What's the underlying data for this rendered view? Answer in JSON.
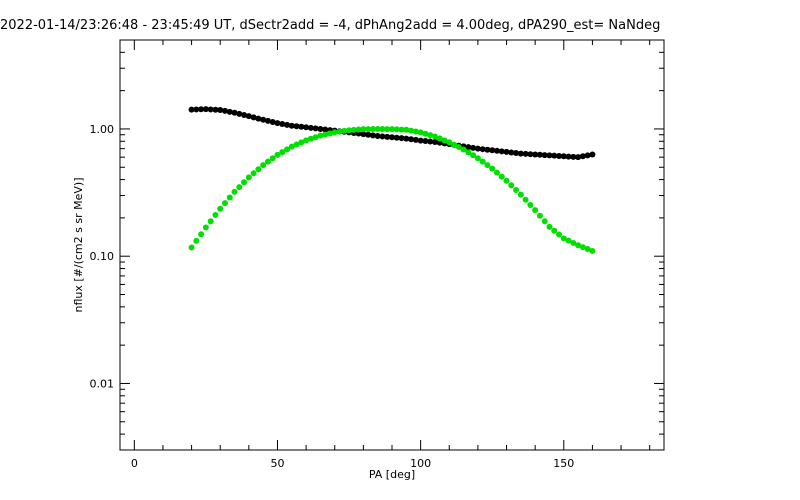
{
  "chart_data": {
    "type": "scatter",
    "title": "2022-01-14/23:26:48 - 23:45:49 UT, dSectr2add = -4, dPhAng2add = 4.00deg, dPA290_est=   NaNdeg",
    "xlabel": "PA [deg]",
    "ylabel": "nflux [#/(cm2 s sr MeV)]",
    "xlim": [
      -5,
      185
    ],
    "ylim": [
      0.003,
      5.0
    ],
    "yscale": "log",
    "xticks": [
      0,
      50,
      100,
      150
    ],
    "xtick_labels": [
      "0",
      "50",
      "100",
      "150"
    ],
    "yticks": [
      0.01,
      0.1,
      1.0
    ],
    "ytick_labels": [
      "0.01",
      "0.10",
      "1.00"
    ],
    "grid": false,
    "series": [
      {
        "color": "#000000",
        "x": [
          20,
          25,
          30,
          35,
          40,
          45,
          50,
          55,
          60,
          65,
          70,
          75,
          80,
          85,
          90,
          95,
          100,
          105,
          110,
          115,
          120,
          125,
          130,
          135,
          140,
          145,
          150,
          155,
          160
        ],
        "values": [
          1.42,
          1.43,
          1.41,
          1.34,
          1.26,
          1.18,
          1.11,
          1.06,
          1.03,
          1.0,
          0.97,
          0.94,
          0.91,
          0.88,
          0.86,
          0.84,
          0.81,
          0.79,
          0.76,
          0.73,
          0.7,
          0.68,
          0.66,
          0.64,
          0.63,
          0.62,
          0.61,
          0.6,
          0.63
        ]
      },
      {
        "color": "#00e000",
        "x": [
          20,
          25,
          30,
          35,
          40,
          45,
          50,
          55,
          60,
          65,
          70,
          75,
          80,
          85,
          90,
          95,
          100,
          105,
          110,
          115,
          120,
          125,
          130,
          135,
          140,
          145,
          150,
          155,
          160
        ],
        "values": [
          0.117,
          0.168,
          0.236,
          0.32,
          0.416,
          0.52,
          0.626,
          0.726,
          0.814,
          0.886,
          0.941,
          0.977,
          0.996,
          1.0,
          0.996,
          0.985,
          0.94,
          0.872,
          0.786,
          0.69,
          0.589,
          0.488,
          0.392,
          0.305,
          0.23,
          0.17,
          0.138,
          0.122,
          0.11
        ]
      }
    ]
  }
}
